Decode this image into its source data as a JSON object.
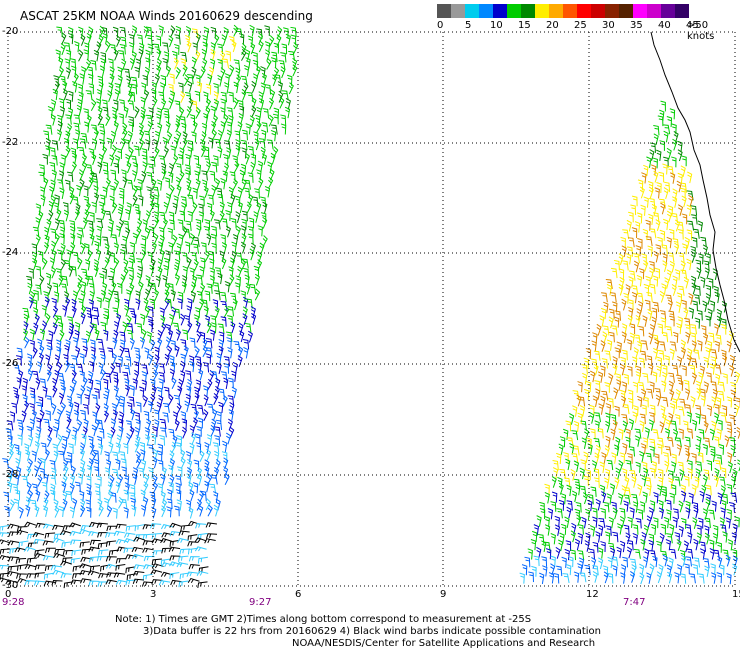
{
  "title": "ASCAT 25KM NOAA Winds 20160629 descending",
  "legend": {
    "unit": ">50 knots",
    "labels": [
      "0",
      "5",
      "10",
      "15",
      "20",
      "25",
      "30",
      "35",
      "40",
      "45"
    ],
    "colors": [
      "#555555",
      "#999999",
      "#00ccee",
      "#0088ff",
      "#0000cc",
      "#00cc00",
      "#008800",
      "#ffee00",
      "#ffaa00",
      "#ff5500",
      "#ff0000",
      "#cc0000",
      "#882200",
      "#552200",
      "#ff00ff",
      "#cc00cc",
      "#660099",
      "#330066"
    ]
  },
  "axes": {
    "y_labels": [
      "-20",
      "-22",
      "-24",
      "-26",
      "-28",
      "-30"
    ],
    "x_labels": [
      "0",
      "3",
      "6",
      "9",
      "12",
      "15"
    ]
  },
  "times": {
    "t1": "9:28",
    "t2": "9:27",
    "t3": "7:47"
  },
  "footer": {
    "line1": "Note: 1) Times are GMT 2)Times along bottom correspond to measurement at -25S",
    "line2": "3)Data buffer is 22 hrs from 20160629 4) Black wind barbs indicate possible contamination",
    "line3": "NOAA/NESDIS/Center for Satellite Applications and Research"
  },
  "colors": {
    "grid": "#000000",
    "coast": "#000000",
    "barb_calm": "#000000",
    "barb_10": "#33ccff",
    "barb_15": "#0066ff",
    "barb_blue_dark": "#0000cc",
    "barb_green": "#00cc00",
    "barb_green_dark": "#008800",
    "barb_yellow": "#ffee00",
    "barb_orange": "#dd8800"
  }
}
